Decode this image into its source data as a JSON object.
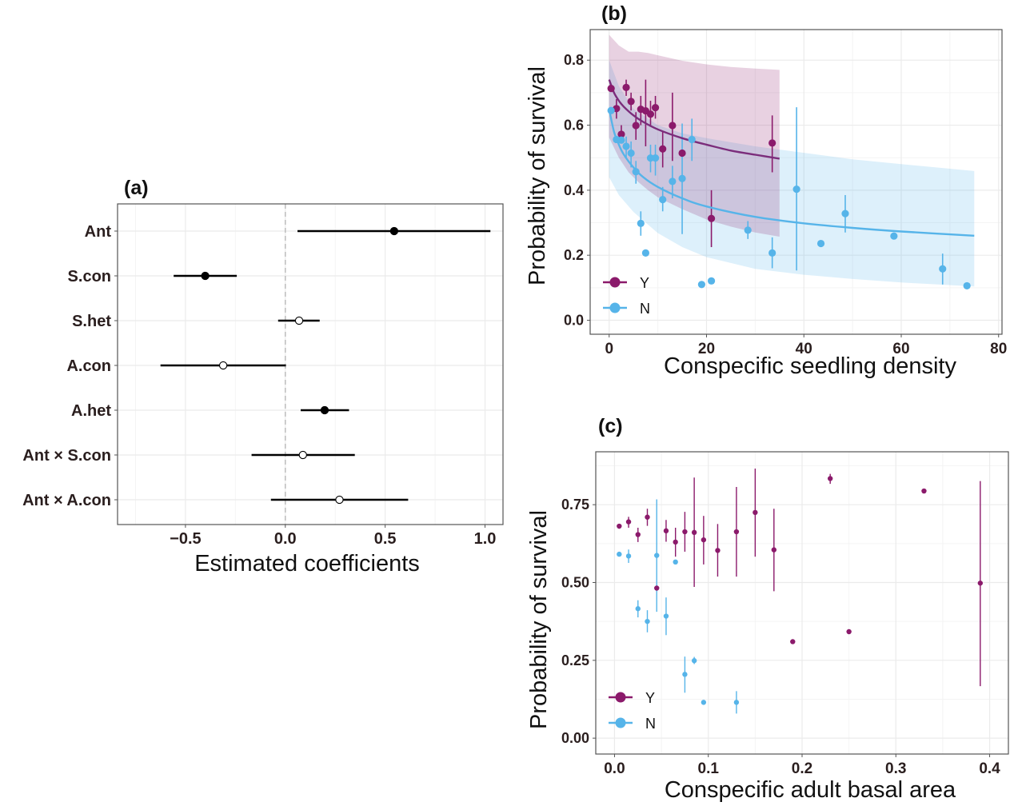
{
  "chart_data": [
    {
      "id": "a",
      "panel_label": "(a)",
      "type": "scatter",
      "subtype": "coefficient-forest-plot",
      "xlabel": "Estimated coefficients",
      "ylabel": "",
      "xlim": [
        -0.84,
        1.09
      ],
      "xticks": [
        -0.5,
        0.0,
        0.5,
        1.0
      ],
      "xtick_labels": [
        "−0.5",
        "0.0",
        "0.5",
        "1.0"
      ],
      "reference_line": 0.0,
      "grid": true,
      "categories": [
        "Ant",
        "S.con",
        "S.het",
        "A.con",
        "A.het",
        "Ant × S.con",
        "Ant × A.con"
      ],
      "estimates": [
        0.545,
        -0.401,
        0.069,
        -0.311,
        0.197,
        0.088,
        0.271
      ],
      "ci_low": [
        0.061,
        -0.559,
        -0.036,
        -0.625,
        0.077,
        -0.169,
        -0.072
      ],
      "ci_high": [
        1.027,
        -0.243,
        0.172,
        0.003,
        0.319,
        0.348,
        0.615
      ],
      "significant": [
        true,
        true,
        false,
        false,
        true,
        false,
        false
      ],
      "marker_fill": {
        "significant": "#000000",
        "not_significant": "#ffffff"
      }
    },
    {
      "id": "b",
      "panel_label": "(b)",
      "type": "scatter",
      "subtype": "points-with-errorbars-and-fitted-curves",
      "xlabel": "Conspecific seedling density",
      "ylabel": "Probability of survival",
      "xlim": [
        -3.9,
        80.7
      ],
      "ylim": [
        -0.043,
        0.894
      ],
      "xticks": [
        0,
        20,
        40,
        60,
        80
      ],
      "xtick_labels": [
        "0",
        "20",
        "40",
        "60",
        "80"
      ],
      "yticks": [
        0.0,
        0.2,
        0.4,
        0.6,
        0.8
      ],
      "ytick_labels": [
        "0.0",
        "0.2",
        "0.4",
        "0.6",
        "0.8"
      ],
      "grid": true,
      "legend": {
        "position": "bottom-left",
        "entries": [
          "Y",
          "N"
        ]
      },
      "series": [
        {
          "name": "Y",
          "color": "#8b1a6b",
          "points": [
            {
              "x": 0.4,
              "y": 0.713
            },
            {
              "x": 1.5,
              "y": 0.651,
              "lo": 0.62,
              "hi": 0.68
            },
            {
              "x": 2.5,
              "y": 0.572,
              "lo": 0.545,
              "hi": 0.6
            },
            {
              "x": 3.5,
              "y": 0.716,
              "lo": 0.69,
              "hi": 0.74
            },
            {
              "x": 4.5,
              "y": 0.673,
              "lo": 0.645,
              "hi": 0.7
            },
            {
              "x": 5.5,
              "y": 0.599,
              "lo": 0.555,
              "hi": 0.64
            },
            {
              "x": 6.5,
              "y": 0.649,
              "lo": 0.6,
              "hi": 0.69
            },
            {
              "x": 7.5,
              "y": 0.644,
              "lo": 0.535,
              "hi": 0.74
            },
            {
              "x": 8.5,
              "y": 0.634,
              "lo": 0.595,
              "hi": 0.675
            },
            {
              "x": 9.5,
              "y": 0.654,
              "lo": 0.62,
              "hi": 0.69
            },
            {
              "x": 11,
              "y": 0.527,
              "lo": 0.47,
              "hi": 0.58
            },
            {
              "x": 13,
              "y": 0.599,
              "lo": 0.49,
              "hi": 0.7
            },
            {
              "x": 15,
              "y": 0.514
            },
            {
              "x": 21,
              "y": 0.313,
              "lo": 0.225,
              "hi": 0.4
            },
            {
              "x": 33.5,
              "y": 0.545,
              "lo": 0.455,
              "hi": 0.63
            }
          ],
          "fit_curve": {
            "x": [
              0,
              1,
              2,
              3,
              5,
              7,
              10,
              15,
              20,
              25,
              30,
              35
            ],
            "y": [
              0.74,
              0.7,
              0.675,
              0.657,
              0.63,
              0.61,
              0.587,
              0.56,
              0.54,
              0.522,
              0.509,
              0.497
            ]
          },
          "ci_band": {
            "x": [
              0,
              2,
              4,
              6,
              8,
              10,
              15,
              20,
              25,
              30,
              35
            ],
            "upper": [
              0.878,
              0.845,
              0.826,
              0.826,
              0.822,
              0.815,
              0.798,
              0.787,
              0.779,
              0.774,
              0.77
            ],
            "lower": [
              0.562,
              0.5,
              0.455,
              0.425,
              0.4,
              0.378,
              0.342,
              0.31,
              0.288,
              0.27,
              0.257
            ]
          }
        },
        {
          "name": "N",
          "color": "#56b4e9",
          "points": [
            {
              "x": 0.4,
              "y": 0.645
            },
            {
              "x": 1.5,
              "y": 0.556
            },
            {
              "x": 2.5,
              "y": 0.554
            },
            {
              "x": 3.5,
              "y": 0.535,
              "lo": 0.5,
              "hi": 0.565
            },
            {
              "x": 4.5,
              "y": 0.514,
              "lo": 0.47,
              "hi": 0.55
            },
            {
              "x": 5.5,
              "y": 0.457,
              "lo": 0.42,
              "hi": 0.49
            },
            {
              "x": 6.5,
              "y": 0.298,
              "lo": 0.26,
              "hi": 0.335
            },
            {
              "x": 7.5,
              "y": 0.207
            },
            {
              "x": 8.5,
              "y": 0.499,
              "lo": 0.455,
              "hi": 0.54
            },
            {
              "x": 9.5,
              "y": 0.499,
              "lo": 0.445,
              "hi": 0.54
            },
            {
              "x": 11,
              "y": 0.371,
              "lo": 0.335,
              "hi": 0.41
            },
            {
              "x": 13,
              "y": 0.427,
              "lo": 0.375,
              "hi": 0.475
            },
            {
              "x": 15,
              "y": 0.436,
              "lo": 0.265,
              "hi": 0.605
            },
            {
              "x": 17,
              "y": 0.556,
              "lo": 0.49,
              "hi": 0.62
            },
            {
              "x": 19,
              "y": 0.11
            },
            {
              "x": 21,
              "y": 0.121
            },
            {
              "x": 28.5,
              "y": 0.277,
              "lo": 0.25,
              "hi": 0.305
            },
            {
              "x": 33.5,
              "y": 0.207,
              "lo": 0.16,
              "hi": 0.255
            },
            {
              "x": 38.5,
              "y": 0.403,
              "lo": 0.153,
              "hi": 0.655
            },
            {
              "x": 43.5,
              "y": 0.236
            },
            {
              "x": 48.5,
              "y": 0.328,
              "lo": 0.27,
              "hi": 0.385
            },
            {
              "x": 58.5,
              "y": 0.259
            },
            {
              "x": 68.5,
              "y": 0.158,
              "lo": 0.11,
              "hi": 0.205
            },
            {
              "x": 73.5,
              "y": 0.106
            }
          ],
          "fit_curve": {
            "x": [
              0,
              1,
              2,
              3,
              5,
              7,
              10,
              15,
              20,
              30,
              40,
              50,
              60,
              75
            ],
            "y": [
              0.649,
              0.58,
              0.54,
              0.51,
              0.47,
              0.44,
              0.41,
              0.375,
              0.35,
              0.318,
              0.298,
              0.284,
              0.273,
              0.26
            ]
          },
          "ci_band": {
            "x": [
              0,
              2,
              5,
              10,
              15,
              20,
              30,
              40,
              50,
              60,
              75
            ],
            "upper": [
              0.8,
              0.72,
              0.65,
              0.6,
              0.575,
              0.56,
              0.535,
              0.515,
              0.495,
              0.48,
              0.459
            ],
            "lower": [
              0.44,
              0.385,
              0.333,
              0.268,
              0.225,
              0.194,
              0.158,
              0.14,
              0.127,
              0.116,
              0.104
            ]
          }
        }
      ]
    },
    {
      "id": "c",
      "panel_label": "(c)",
      "type": "scatter",
      "subtype": "points-with-errorbars",
      "xlabel": "Conspecific adult basal area",
      "ylabel": "Probability of survival",
      "xlim": [
        -0.02,
        0.42
      ],
      "ylim": [
        -0.051,
        0.92
      ],
      "xticks": [
        0.0,
        0.1,
        0.2,
        0.3,
        0.4
      ],
      "xtick_labels": [
        "0.0",
        "0.1",
        "0.2",
        "0.3",
        "0.4"
      ],
      "yticks": [
        0.0,
        0.25,
        0.5,
        0.75
      ],
      "ytick_labels": [
        "0.00",
        "0.25",
        "0.50",
        "0.75"
      ],
      "grid": true,
      "legend": {
        "position": "bottom-left",
        "entries": [
          "Y",
          "N"
        ]
      },
      "series": [
        {
          "name": "Y",
          "color": "#8b1a6b",
          "points": [
            {
              "x": 0.005,
              "y": 0.681,
              "lo": 0.673,
              "hi": 0.687
            },
            {
              "x": 0.015,
              "y": 0.695,
              "lo": 0.676,
              "hi": 0.711
            },
            {
              "x": 0.025,
              "y": 0.654,
              "lo": 0.63,
              "hi": 0.676
            },
            {
              "x": 0.035,
              "y": 0.71,
              "lo": 0.682,
              "hi": 0.737
            },
            {
              "x": 0.045,
              "y": 0.482
            },
            {
              "x": 0.055,
              "y": 0.666,
              "lo": 0.631,
              "hi": 0.701
            },
            {
              "x": 0.065,
              "y": 0.63,
              "lo": 0.583,
              "hi": 0.676
            },
            {
              "x": 0.075,
              "y": 0.663,
              "lo": 0.599,
              "hi": 0.727
            },
            {
              "x": 0.085,
              "y": 0.661,
              "lo": 0.486,
              "hi": 0.837
            },
            {
              "x": 0.095,
              "y": 0.637,
              "lo": 0.558,
              "hi": 0.714
            },
            {
              "x": 0.11,
              "y": 0.603,
              "lo": 0.519,
              "hi": 0.688
            },
            {
              "x": 0.13,
              "y": 0.663,
              "lo": 0.519,
              "hi": 0.807
            },
            {
              "x": 0.15,
              "y": 0.725,
              "lo": 0.583,
              "hi": 0.866
            },
            {
              "x": 0.17,
              "y": 0.605,
              "lo": 0.472,
              "hi": 0.737
            },
            {
              "x": 0.19,
              "y": 0.31
            },
            {
              "x": 0.23,
              "y": 0.834,
              "lo": 0.817,
              "hi": 0.849
            },
            {
              "x": 0.25,
              "y": 0.342
            },
            {
              "x": 0.33,
              "y": 0.794
            },
            {
              "x": 0.39,
              "y": 0.498,
              "lo": 0.167,
              "hi": 0.826
            }
          ]
        },
        {
          "name": "N",
          "color": "#56b4e9",
          "points": [
            {
              "x": 0.005,
              "y": 0.591
            },
            {
              "x": 0.015,
              "y": 0.585,
              "lo": 0.563,
              "hi": 0.606
            },
            {
              "x": 0.025,
              "y": 0.416,
              "lo": 0.388,
              "hi": 0.443
            },
            {
              "x": 0.035,
              "y": 0.375,
              "lo": 0.34,
              "hi": 0.411
            },
            {
              "x": 0.045,
              "y": 0.587,
              "lo": 0.406,
              "hi": 0.767
            },
            {
              "x": 0.055,
              "y": 0.392,
              "lo": 0.331,
              "hi": 0.452
            },
            {
              "x": 0.065,
              "y": 0.566
            },
            {
              "x": 0.075,
              "y": 0.205,
              "lo": 0.146,
              "hi": 0.262
            },
            {
              "x": 0.085,
              "y": 0.249,
              "lo": 0.238,
              "hi": 0.261
            },
            {
              "x": 0.095,
              "y": 0.115
            },
            {
              "x": 0.13,
              "y": 0.115,
              "lo": 0.079,
              "hi": 0.151
            }
          ]
        }
      ]
    }
  ]
}
